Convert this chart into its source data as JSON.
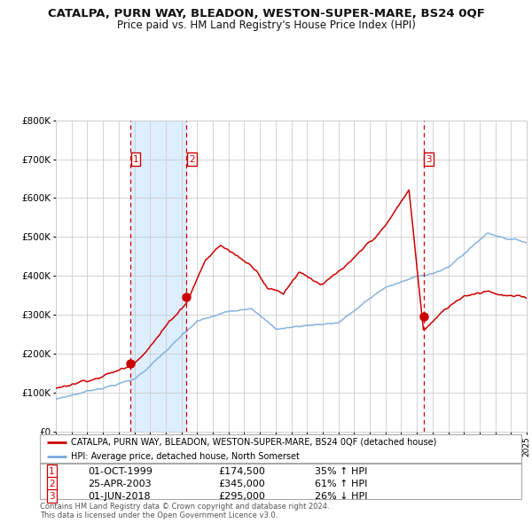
{
  "title": "CATALPA, PURN WAY, BLEADON, WESTON-SUPER-MARE, BS24 0QF",
  "subtitle": "Price paid vs. HM Land Registry's House Price Index (HPI)",
  "legend_line1": "CATALPA, PURN WAY, BLEADON, WESTON-SUPER-MARE, BS24 0QF (detached house)",
  "legend_line2": "HPI: Average price, detached house, North Somerset",
  "footer1": "Contains HM Land Registry data © Crown copyright and database right 2024.",
  "footer2": "This data is licensed under the Open Government Licence v3.0.",
  "sales": [
    {
      "num": 1,
      "date": "01-OCT-1999",
      "price": 174500,
      "pct": "35%",
      "dir": "↑"
    },
    {
      "num": 2,
      "date": "25-APR-2003",
      "price": 345000,
      "pct": "61%",
      "dir": "↑"
    },
    {
      "num": 3,
      "date": "01-JUN-2018",
      "price": 295000,
      "pct": "26%",
      "dir": "↓"
    }
  ],
  "sale_years": [
    1999.75,
    2003.32,
    2018.42
  ],
  "sale_prices": [
    174500,
    345000,
    295000
  ],
  "ylim": [
    0,
    800000
  ],
  "yticks": [
    0,
    100000,
    200000,
    300000,
    400000,
    500000,
    600000,
    700000,
    800000
  ],
  "hpi_color": "#7aaadd",
  "price_color": "#cc0000",
  "bg_highlight_color": "#ddeeff",
  "grid_color": "#cccccc",
  "title_color": "#111111",
  "box_color": "#cc0000",
  "xstart": 1995,
  "xend": 2025
}
